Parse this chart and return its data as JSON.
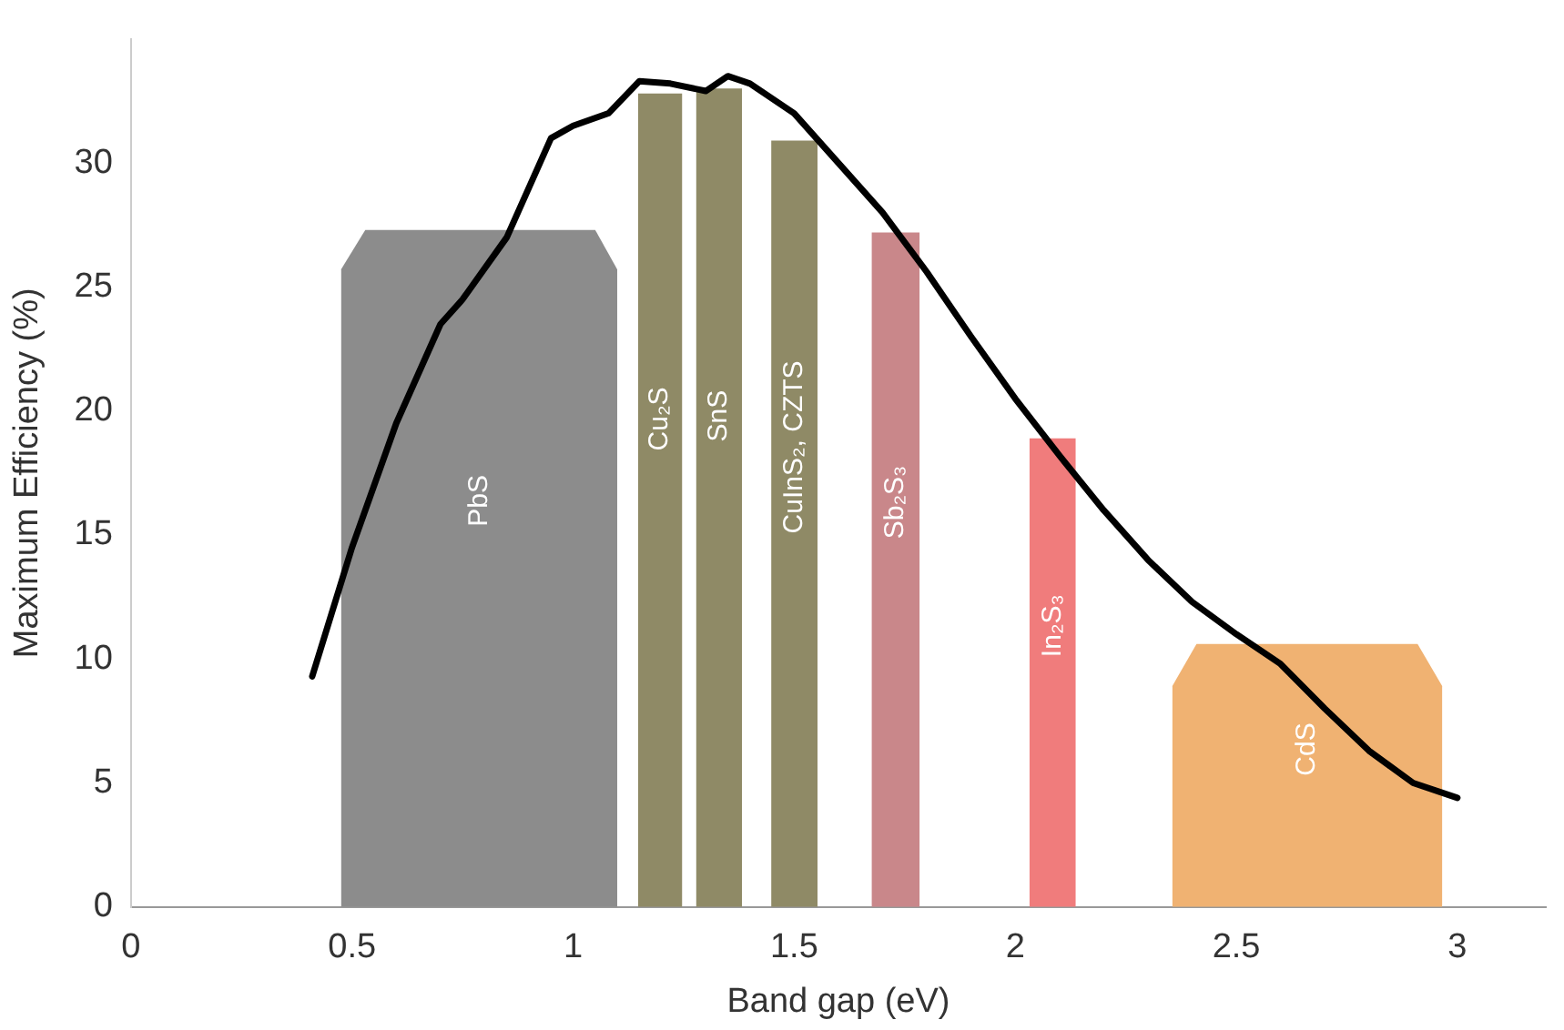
{
  "chart_data": {
    "type": "area",
    "xlabel": "Band gap (eV)",
    "ylabel": "Maximum Efficiency (%)",
    "xlim": [
      0,
      3.2
    ],
    "xticks": [
      0,
      0.5,
      1,
      1.5,
      2,
      2.5,
      3
    ],
    "ylim": [
      0,
      35
    ],
    "yticks": [
      0,
      5,
      10,
      15,
      20,
      25,
      30
    ],
    "grid": false,
    "legend": false,
    "marker": "none",
    "series": [
      {
        "name": "PbS",
        "color": "#8c8c8c",
        "x": [
          0.475,
          0.475,
          0.53,
          1.05,
          1.1,
          1.1
        ],
        "values": [
          0,
          25.7,
          27.3,
          27.3,
          25.7,
          0
        ]
      },
      {
        "name": "Cu₂S",
        "color": "#8f8a66",
        "x": [
          1.147,
          1.147,
          1.247,
          1.247
        ],
        "values": [
          0,
          32.8,
          32.8,
          0
        ]
      },
      {
        "name": "SnS",
        "color": "#8f8a66",
        "x": [
          1.278,
          1.278,
          1.382,
          1.382
        ],
        "values": [
          0,
          33,
          33,
          0
        ]
      },
      {
        "name": "CuInS₂, CZTS",
        "color": "#8f8a66",
        "x": [
          1.448,
          1.448,
          1.553,
          1.553
        ],
        "values": [
          0,
          30.9,
          30.9,
          0
        ]
      },
      {
        "name": "Sb₂S₃",
        "color": "#c9878a",
        "x": [
          1.675,
          1.675,
          1.784,
          1.784
        ],
        "values": [
          0,
          27.2,
          27.2,
          0
        ]
      },
      {
        "name": "In₂S₃",
        "color": "#f07c7c",
        "x": [
          2.032,
          2.032,
          2.137,
          2.137
        ],
        "values": [
          0,
          18.9,
          18.9,
          0
        ]
      },
      {
        "name": "CdS",
        "color": "#f0b272",
        "x": [
          2.355,
          2.355,
          2.41,
          2.91,
          2.966,
          2.966
        ],
        "values": [
          0,
          8.9,
          10.6,
          10.6,
          8.9,
          0
        ]
      },
      {
        "type": "line",
        "color": "#000000",
        "x": [
          0.41,
          0.5,
          0.6,
          0.7,
          0.75,
          0.85,
          0.95,
          1.0,
          1.08,
          1.15,
          1.22,
          1.3,
          1.35,
          1.4,
          1.5,
          1.6,
          1.7,
          1.8,
          1.9,
          2.0,
          2.1,
          2.2,
          2.3,
          2.4,
          2.5,
          2.6,
          2.7,
          2.8,
          2.9,
          3.0
        ],
        "values": [
          9.3,
          14.5,
          19.5,
          23.5,
          24.5,
          27,
          31,
          31.5,
          32,
          33.3,
          33.2,
          32.9,
          33.5,
          33.2,
          32,
          30,
          28,
          25.6,
          23,
          20.5,
          18.2,
          16,
          14,
          12.3,
          11,
          9.8,
          8,
          6.3,
          5,
          4.4
        ]
      }
    ]
  }
}
